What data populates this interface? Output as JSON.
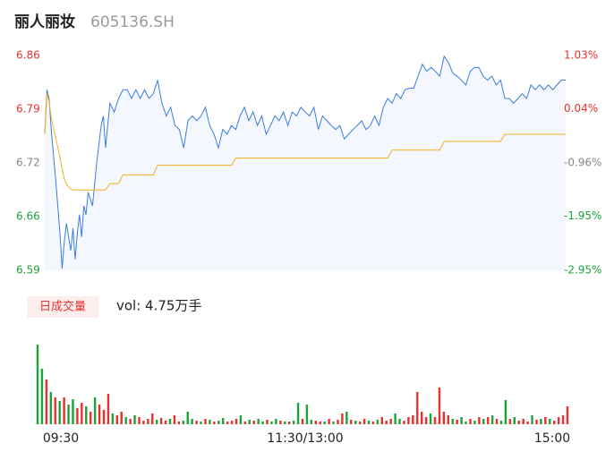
{
  "header": {
    "name": "丽人丽妆",
    "code": "605136.SH"
  },
  "chart_data": [
    {
      "type": "line",
      "xlim": [
        0,
        240
      ],
      "x": [
        0,
        1,
        2,
        3,
        5,
        7,
        8,
        9,
        10,
        12,
        13,
        14,
        15,
        16,
        17,
        18,
        19,
        20,
        22,
        24,
        26,
        27,
        28,
        30,
        32,
        34,
        36,
        38,
        40,
        42,
        44,
        46,
        48,
        50,
        52,
        54,
        56,
        58,
        60,
        62,
        64,
        66,
        68,
        70,
        72,
        74,
        76,
        78,
        80,
        82,
        84,
        86,
        88,
        90,
        92,
        94,
        96,
        98,
        100,
        102,
        104,
        106,
        108,
        110,
        112,
        114,
        116,
        118,
        120,
        122,
        124,
        126,
        128,
        130,
        132,
        134,
        136,
        138,
        140,
        142,
        144,
        146,
        148,
        150,
        152,
        154,
        156,
        158,
        160,
        162,
        164,
        166,
        168,
        170,
        172,
        174,
        176,
        178,
        180,
        182,
        184,
        186,
        188,
        190,
        192,
        194,
        196,
        198,
        200,
        202,
        204,
        206,
        208,
        210,
        212,
        214,
        216,
        218,
        220,
        222,
        224,
        226,
        228,
        230,
        232,
        234,
        236,
        238,
        240
      ],
      "series": [
        {
          "color": "#3b7de0",
          "fill": "#f4f7fd",
          "values": [
            6.759,
            6.815,
            6.804,
            6.765,
            6.703,
            6.635,
            6.59,
            6.624,
            6.647,
            6.613,
            6.641,
            6.602,
            6.635,
            6.658,
            6.63,
            6.669,
            6.658,
            6.686,
            6.669,
            6.725,
            6.77,
            6.782,
            6.742,
            6.798,
            6.787,
            6.804,
            6.815,
            6.815,
            6.804,
            6.815,
            6.804,
            6.815,
            6.804,
            6.81,
            6.827,
            6.798,
            6.782,
            6.793,
            6.77,
            6.765,
            6.742,
            6.776,
            6.782,
            6.776,
            6.782,
            6.793,
            6.77,
            6.759,
            6.742,
            6.765,
            6.759,
            6.77,
            6.765,
            6.782,
            6.793,
            6.776,
            6.787,
            6.77,
            6.782,
            6.759,
            6.77,
            6.782,
            6.776,
            6.787,
            6.77,
            6.787,
            6.782,
            6.793,
            6.787,
            6.782,
            6.793,
            6.765,
            6.782,
            6.776,
            6.77,
            6.765,
            6.77,
            6.753,
            6.759,
            6.765,
            6.77,
            6.776,
            6.765,
            6.77,
            6.782,
            6.77,
            6.793,
            6.804,
            6.798,
            6.81,
            6.804,
            6.815,
            6.817,
            6.817,
            6.832,
            6.847,
            6.838,
            6.843,
            6.838,
            6.832,
            6.857,
            6.849,
            6.836,
            6.832,
            6.827,
            6.821,
            6.838,
            6.843,
            6.843,
            6.832,
            6.827,
            6.832,
            6.821,
            6.827,
            6.804,
            6.804,
            6.798,
            6.804,
            6.81,
            6.804,
            6.821,
            6.815,
            6.821,
            6.815,
            6.821,
            6.815,
            6.821,
            6.827,
            6.827
          ]
        },
        {
          "color": "#f0b020",
          "values": [
            6.759,
            6.81,
            6.8,
            6.78,
            6.755,
            6.73,
            6.715,
            6.703,
            6.696,
            6.69,
            6.689,
            6.689,
            6.689,
            6.689,
            6.689,
            6.689,
            6.689,
            6.689,
            6.689,
            6.689,
            6.689,
            6.689,
            6.689,
            6.697,
            6.697,
            6.697,
            6.708,
            6.708,
            6.708,
            6.708,
            6.708,
            6.708,
            6.708,
            6.708,
            6.72,
            6.72,
            6.72,
            6.72,
            6.72,
            6.72,
            6.72,
            6.72,
            6.72,
            6.72,
            6.72,
            6.72,
            6.72,
            6.72,
            6.72,
            6.72,
            6.72,
            6.72,
            6.729,
            6.729,
            6.729,
            6.729,
            6.729,
            6.729,
            6.729,
            6.729,
            6.729,
            6.729,
            6.729,
            6.729,
            6.729,
            6.729,
            6.729,
            6.729,
            6.729,
            6.729,
            6.729,
            6.729,
            6.729,
            6.729,
            6.729,
            6.729,
            6.729,
            6.729,
            6.729,
            6.729,
            6.729,
            6.729,
            6.729,
            6.729,
            6.729,
            6.729,
            6.729,
            6.729,
            6.739,
            6.739,
            6.739,
            6.739,
            6.739,
            6.739,
            6.739,
            6.739,
            6.739,
            6.739,
            6.739,
            6.739,
            6.75,
            6.75,
            6.75,
            6.75,
            6.75,
            6.75,
            6.75,
            6.75,
            6.75,
            6.75,
            6.75,
            6.75,
            6.75,
            6.75,
            6.759,
            6.759,
            6.759,
            6.759,
            6.759,
            6.759,
            6.759,
            6.759,
            6.759,
            6.759,
            6.759,
            6.759,
            6.759,
            6.759,
            6.759
          ]
        }
      ],
      "ylim": [
        6.588,
        6.858
      ],
      "yticks": [
        {
          "value": 6.858,
          "label": "6.86"
        },
        {
          "value": 6.7905,
          "label": "6.79"
        },
        {
          "value": 6.723,
          "label": "6.72"
        },
        {
          "value": 6.6555,
          "label": "6.66"
        },
        {
          "value": 6.588,
          "label": "6.59"
        }
      ],
      "y2lim": [
        -2.95,
        1.03
      ],
      "y2ticks": [
        {
          "value": 1.03,
          "label": "1.03%"
        },
        {
          "value": 0.04,
          "label": "0.04%"
        },
        {
          "value": -0.96,
          "label": "-0.96%"
        },
        {
          "value": -1.95,
          "label": "-1.95%"
        },
        {
          "value": -2.95,
          "label": "-2.95%"
        }
      ],
      "up_color": "#e8312f",
      "flat_color": "#888888",
      "down_color": "#1ba33b"
    },
    {
      "type": "bar",
      "tab": "日成交量",
      "label": "vol: 4.75万手",
      "xlim": [
        0,
        240
      ],
      "xticks": [
        {
          "value": 0,
          "label": "09:30"
        },
        {
          "value": 120,
          "label": "11:30/13:00"
        },
        {
          "value": 240,
          "label": "15:00"
        }
      ],
      "x": [
        0,
        2,
        4,
        6,
        8,
        10,
        12,
        14,
        16,
        18,
        20,
        22,
        24,
        26,
        28,
        30,
        32,
        34,
        36,
        38,
        40,
        42,
        44,
        46,
        48,
        50,
        52,
        54,
        56,
        58,
        60,
        62,
        64,
        66,
        68,
        70,
        72,
        74,
        76,
        78,
        80,
        82,
        84,
        86,
        88,
        90,
        92,
        94,
        96,
        98,
        100,
        102,
        104,
        106,
        108,
        110,
        112,
        114,
        116,
        118,
        120,
        122,
        124,
        126,
        128,
        130,
        132,
        134,
        136,
        138,
        140,
        142,
        144,
        146,
        148,
        150,
        152,
        154,
        156,
        158,
        160,
        162,
        164,
        166,
        168,
        170,
        172,
        174,
        176,
        178,
        180,
        182,
        184,
        186,
        188,
        190,
        192,
        194,
        196,
        198,
        200,
        202,
        204,
        206,
        208,
        210,
        212,
        214,
        216,
        218,
        220,
        222,
        224,
        226,
        228,
        230,
        232,
        234,
        236,
        238,
        240
      ],
      "values": [
        2225,
        1550,
        1250,
        900,
        750,
        650,
        750,
        550,
        700,
        450,
        600,
        500,
        350,
        750,
        550,
        400,
        850,
        300,
        250,
        350,
        200,
        150,
        250,
        200,
        100,
        150,
        300,
        125,
        175,
        100,
        150,
        250,
        75,
        100,
        350,
        150,
        100,
        75,
        150,
        125,
        75,
        100,
        175,
        75,
        100,
        150,
        250,
        75,
        125,
        100,
        150,
        75,
        125,
        75,
        150,
        100,
        75,
        75,
        100,
        600,
        150,
        550,
        125,
        100,
        75,
        75,
        150,
        75,
        125,
        300,
        350,
        125,
        100,
        75,
        150,
        100,
        75,
        125,
        200,
        100,
        150,
        300,
        150,
        100,
        200,
        250,
        900,
        350,
        200,
        300,
        200,
        1025,
        350,
        250,
        150,
        125,
        200,
        75,
        150,
        100,
        200,
        150,
        200,
        250,
        150,
        100,
        675,
        150,
        200,
        100,
        150,
        75,
        250,
        125,
        150,
        200,
        150,
        100,
        200,
        250,
        500
      ],
      "colors": [
        "#1ba33b",
        "#1ba33b",
        "#e8312f",
        "#1ba33b",
        "#e8312f",
        "#1ba33b",
        "#e8312f",
        "#1ba33b",
        "#1ba33b",
        "#e8312f",
        "#e8312f",
        "#1ba33b",
        "#e8312f",
        "#1ba33b",
        "#e8312f",
        "#e8312f",
        "#e8312f",
        "#1ba33b",
        "#e8312f",
        "#e8312f",
        "#1ba33b",
        "#e8312f",
        "#1ba33b",
        "#e8312f",
        "#e8312f",
        "#e8312f",
        "#e8312f",
        "#1ba33b",
        "#e8312f",
        "#e8312f",
        "#1ba33b",
        "#e8312f",
        "#e8312f",
        "#1ba33b",
        "#1ba33b",
        "#1ba33b",
        "#e8312f",
        "#1ba33b",
        "#e8312f",
        "#1ba33b",
        "#e8312f",
        "#1ba33b",
        "#1ba33b",
        "#e8312f",
        "#e8312f",
        "#e8312f",
        "#1ba33b",
        "#e8312f",
        "#1ba33b",
        "#e8312f",
        "#1ba33b",
        "#1ba33b",
        "#e8312f",
        "#1ba33b",
        "#1ba33b",
        "#e8312f",
        "#1ba33b",
        "#e8312f",
        "#1ba33b",
        "#1ba33b",
        "#e8312f",
        "#1ba33b",
        "#1ba33b",
        "#e8312f",
        "#e8312f",
        "#1ba33b",
        "#e8312f",
        "#1ba33b",
        "#e8312f",
        "#e8312f",
        "#1ba33b",
        "#e8312f",
        "#1ba33b",
        "#e8312f",
        "#e8312f",
        "#1ba33b",
        "#e8312f",
        "#1ba33b",
        "#e8312f",
        "#e8312f",
        "#e8312f",
        "#1ba33b",
        "#1ba33b",
        "#e8312f",
        "#e8312f",
        "#e8312f",
        "#e8312f",
        "#e8312f",
        "#e8312f",
        "#1ba33b",
        "#e8312f",
        "#e8312f",
        "#e8312f",
        "#e8312f",
        "#1ba33b",
        "#e8312f",
        "#1ba33b",
        "#1ba33b",
        "#e8312f",
        "#1ba33b",
        "#e8312f",
        "#1ba33b",
        "#e8312f",
        "#1ba33b",
        "#e8312f",
        "#1ba33b",
        "#1ba33b",
        "#e8312f",
        "#1ba33b",
        "#e8312f",
        "#e8312f",
        "#e8312f",
        "#1ba33b",
        "#e8312f",
        "#1ba33b",
        "#e8312f",
        "#1ba33b",
        "#e8312f",
        "#e8312f",
        "#e8312f",
        "#e8312f"
      ]
    }
  ]
}
